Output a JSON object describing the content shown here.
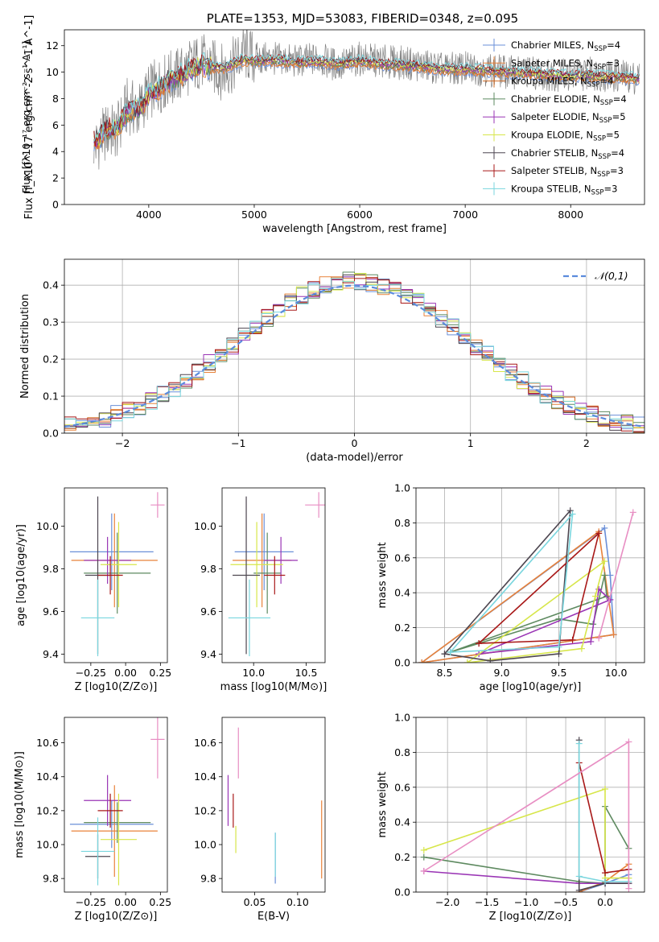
{
  "chart_data": [
    {
      "id": "spectrum",
      "type": "line",
      "title": "PLATE=1353, MJD=53083, FIBERID=0348, z=0.095",
      "xlabel": "wavelength [Angstrom, rest frame]",
      "ylabel": "Flux [f_λ10^-17 erg cm^-2 s^-1 A^-1]",
      "xlim": [
        3200,
        8700
      ],
      "ylim": [
        0,
        13.2
      ],
      "xticks": [
        4000,
        5000,
        6000,
        7000,
        8000
      ],
      "yticks": [
        0,
        2,
        4,
        6,
        8,
        10,
        12
      ],
      "legend_position": "right",
      "data_series": {
        "name": "data",
        "x": [
          3500,
          3600,
          3700,
          3800,
          3900,
          4000,
          4100,
          4200,
          4300,
          4400,
          4500,
          4600,
          4700,
          4800,
          4900,
          5000,
          5200,
          5400,
          5600,
          5800,
          6000,
          6200,
          6400,
          6600,
          6800,
          7000,
          7200,
          7400,
          7600,
          7800,
          8000,
          8200,
          8400,
          8650
        ],
        "y": [
          4.5,
          5.5,
          5.5,
          7.5,
          7.0,
          8.5,
          9.0,
          9.5,
          9.8,
          10.5,
          10.8,
          10.4,
          10.0,
          10.5,
          11.5,
          11.0,
          11.0,
          10.8,
          11.0,
          10.5,
          11.0,
          10.8,
          10.7,
          10.5,
          10.2,
          10.3,
          10.2,
          10.0,
          10.0,
          9.8,
          9.8,
          9.9,
          9.7,
          9.6
        ]
      },
      "series": [
        {
          "name": "Chabrier MILES, N_SSP=4",
          "color": "#6a8fd8"
        },
        {
          "name": "Salpeter MILES, N_SSP=3",
          "color": "#e8823a"
        },
        {
          "name": "Kroupa MILES, N_SSP=4",
          "color": "#d26b24"
        },
        {
          "name": "Chabrier ELODIE, N_SSP=4",
          "color": "#5e8a60"
        },
        {
          "name": "Salpeter ELODIE, N_SSP=5",
          "color": "#9a35b5"
        },
        {
          "name": "Kroupa ELODIE, N_SSP=5",
          "color": "#d7e64a"
        },
        {
          "name": "Chabrier STELIB, N_SSP=4",
          "color": "#4d4650"
        },
        {
          "name": "Salpeter STELIB, N_SSP=3",
          "color": "#a81818"
        },
        {
          "name": "Kroupa STELIB, N_SSP=3",
          "color": "#7ad6de"
        }
      ],
      "model_x": [
        3500,
        3600,
        3700,
        3800,
        3900,
        4000,
        4100,
        4200,
        4300,
        4400,
        4500,
        4600,
        4700,
        4800,
        4900,
        5000,
        5200,
        5400,
        5600,
        5800,
        6000,
        6200,
        6400,
        6600,
        6800,
        7000,
        7200,
        7400,
        7600,
        7800,
        8000,
        8200,
        8400,
        8650
      ],
      "model_y": [
        4.8,
        5.6,
        5.8,
        7.0,
        7.2,
        8.2,
        8.8,
        9.4,
        9.7,
        10.2,
        10.5,
        10.4,
        10.3,
        10.6,
        10.9,
        10.8,
        10.9,
        10.7,
        10.8,
        10.6,
        10.8,
        10.6,
        10.5,
        10.4,
        10.2,
        10.2,
        10.1,
        10.0,
        9.9,
        9.8,
        9.7,
        9.7,
        9.6,
        9.5
      ]
    },
    {
      "id": "residuals",
      "type": "line",
      "xlabel": "(data-model)/error",
      "ylabel": "Normed distribution",
      "xlim": [
        -2.5,
        2.5
      ],
      "ylim": [
        0,
        0.47
      ],
      "xticks": [
        -2,
        -1,
        0,
        1,
        2
      ],
      "yticks": [
        0.0,
        0.1,
        0.2,
        0.3,
        0.4
      ],
      "grid": true,
      "legend_position": "top-right",
      "reference": {
        "name": "𝒩(0,1)",
        "color": "#5b8bdc"
      },
      "bin_width": 0.1
    },
    {
      "id": "age-vs-Z",
      "type": "scatter",
      "xlabel": "Z [log10(Z/Z⊙)]",
      "ylabel": "age [log10(age/yr)]",
      "xlim": [
        -0.44,
        0.3
      ],
      "ylim": [
        9.36,
        10.18
      ],
      "xticks": [
        -0.25,
        0.0,
        0.25
      ],
      "yticks": [
        9.4,
        9.6,
        9.8,
        10.0
      ],
      "points": [
        {
          "color": "#6a8fd8",
          "x": -0.1,
          "y": 9.88,
          "xerr": 0.3,
          "yerr": 0.18
        },
        {
          "color": "#e8823a",
          "x": -0.08,
          "y": 9.84,
          "xerr": 0.31,
          "yerr": 0.22
        },
        {
          "color": "#5e8a60",
          "x": -0.06,
          "y": 9.78,
          "xerr": 0.24,
          "yerr": 0.19
        },
        {
          "color": "#9a35b5",
          "x": -0.13,
          "y": 9.84,
          "xerr": 0.17,
          "yerr": 0.11
        },
        {
          "color": "#d7e64a",
          "x": -0.05,
          "y": 9.82,
          "xerr": 0.13,
          "yerr": 0.2
        },
        {
          "color": "#4d4650",
          "x": -0.2,
          "y": 9.77,
          "xerr": 0.09,
          "yerr": 0.37
        },
        {
          "color": "#a81818",
          "x": -0.11,
          "y": 9.77,
          "xerr": 0.09,
          "yerr": 0.09
        },
        {
          "color": "#7ad6de",
          "x": -0.2,
          "y": 9.57,
          "xerr": 0.12,
          "yerr": 0.18
        },
        {
          "color": "#e88ec3",
          "x": 0.23,
          "y": 10.1,
          "xerr": 0.05,
          "yerr": 0.06
        }
      ]
    },
    {
      "id": "age-vs-mass",
      "type": "scatter",
      "xlabel": "mass [log10(M/M⊙)]",
      "xlim": [
        9.7,
        10.68
      ],
      "ylim": [
        9.36,
        10.18
      ],
      "xticks": [
        10.0,
        10.5
      ],
      "yticks": [
        9.4,
        9.6,
        9.8,
        10.0
      ],
      "points": [
        {
          "color": "#6a8fd8",
          "x": 10.1,
          "y": 9.88,
          "xerr": 0.28,
          "yerr": 0.18
        },
        {
          "color": "#e8823a",
          "x": 10.08,
          "y": 9.84,
          "xerr": 0.28,
          "yerr": 0.22
        },
        {
          "color": "#5e8a60",
          "x": 10.13,
          "y": 9.78,
          "xerr": 0.13,
          "yerr": 0.19
        },
        {
          "color": "#9a35b5",
          "x": 10.26,
          "y": 9.84,
          "xerr": 0.16,
          "yerr": 0.11
        },
        {
          "color": "#d7e64a",
          "x": 10.03,
          "y": 9.82,
          "xerr": 0.25,
          "yerr": 0.2
        },
        {
          "color": "#4d4650",
          "x": 9.93,
          "y": 9.77,
          "xerr": 0.13,
          "yerr": 0.37
        },
        {
          "color": "#a81818",
          "x": 10.2,
          "y": 9.77,
          "xerr": 0.1,
          "yerr": 0.09
        },
        {
          "color": "#7ad6de",
          "x": 9.96,
          "y": 9.57,
          "xerr": 0.2,
          "yerr": 0.18
        },
        {
          "color": "#e88ec3",
          "x": 10.62,
          "y": 10.1,
          "xerr": 0.13,
          "yerr": 0.06
        }
      ]
    },
    {
      "id": "weight-vs-age",
      "type": "line",
      "xlabel": "age [log10(age/yr)]",
      "ylabel": "mass weight",
      "xlim": [
        8.25,
        10.25
      ],
      "ylim": [
        0,
        1.0
      ],
      "xticks": [
        8.5,
        9.0,
        9.5,
        10.0
      ],
      "yticks": [
        0.0,
        0.2,
        0.4,
        0.6,
        0.8,
        1.0
      ],
      "series": [
        {
          "color": "#6a8fd8",
          "x": [
            8.3,
            9.9,
            9.95,
            9.98,
            8.3
          ],
          "y": [
            0.0,
            0.77,
            0.5,
            0.16,
            0.0
          ]
        },
        {
          "color": "#e8823a",
          "x": [
            8.3,
            9.85,
            9.98,
            8.3
          ],
          "y": [
            0.0,
            0.75,
            0.16,
            0.0
          ]
        },
        {
          "color": "#5e8a60",
          "x": [
            8.55,
            9.5,
            9.8,
            9.9,
            9.92,
            8.55
          ],
          "y": [
            0.06,
            0.25,
            0.22,
            0.5,
            0.38,
            0.06
          ]
        },
        {
          "color": "#9a35b5",
          "x": [
            8.8,
            9.78,
            9.85,
            9.95,
            8.8
          ],
          "y": [
            0.05,
            0.12,
            0.42,
            0.36,
            0.05
          ]
        },
        {
          "color": "#d7e64a",
          "x": [
            8.7,
            9.7,
            9.82,
            9.9,
            8.7
          ],
          "y": [
            0.0,
            0.08,
            0.38,
            0.58,
            0.0
          ]
        },
        {
          "color": "#4d4650",
          "x": [
            8.5,
            8.9,
            9.5,
            9.6,
            8.5
          ],
          "y": [
            0.05,
            0.01,
            0.05,
            0.87,
            0.05
          ]
        },
        {
          "color": "#a81818",
          "x": [
            8.8,
            9.62,
            9.85,
            8.8
          ],
          "y": [
            0.11,
            0.13,
            0.74,
            0.11
          ]
        },
        {
          "color": "#7ad6de",
          "x": [
            8.55,
            9.5,
            9.62,
            8.55
          ],
          "y": [
            0.06,
            0.09,
            0.85,
            0.06
          ]
        },
        {
          "color": "#e88ec3",
          "x": [
            9.85,
            10.15
          ],
          "y": [
            0.14,
            0.86
          ]
        }
      ]
    },
    {
      "id": "mass-vs-Z",
      "type": "scatter",
      "xlabel": "Z [log10(Z/Z⊙)]",
      "ylabel": "mass [log10(M/M⊙)]",
      "xlim": [
        -0.44,
        0.3
      ],
      "ylim": [
        9.72,
        10.75
      ],
      "xticks": [
        -0.25,
        0.0,
        0.25
      ],
      "yticks": [
        9.8,
        10.0,
        10.2,
        10.4,
        10.6
      ],
      "points": [
        {
          "color": "#6a8fd8",
          "x": -0.1,
          "y": 10.12,
          "xerr": 0.3,
          "yerr": 0.14
        },
        {
          "color": "#e8823a",
          "x": -0.08,
          "y": 10.08,
          "xerr": 0.31,
          "yerr": 0.27
        },
        {
          "color": "#5e8a60",
          "x": -0.06,
          "y": 10.13,
          "xerr": 0.24,
          "yerr": 0.12
        },
        {
          "color": "#9a35b5",
          "x": -0.13,
          "y": 10.26,
          "xerr": 0.17,
          "yerr": 0.15
        },
        {
          "color": "#d7e64a",
          "x": -0.05,
          "y": 10.03,
          "xerr": 0.13,
          "yerr": 0.27
        },
        {
          "color": "#4d4650",
          "x": -0.2,
          "y": 9.93,
          "xerr": 0.09,
          "yerr": 0.13
        },
        {
          "color": "#a81818",
          "x": -0.11,
          "y": 10.2,
          "xerr": 0.09,
          "yerr": 0.1
        },
        {
          "color": "#7ad6de",
          "x": -0.2,
          "y": 9.96,
          "xerr": 0.12,
          "yerr": 0.2
        },
        {
          "color": "#e88ec3",
          "x": 0.23,
          "y": 10.62,
          "xerr": 0.05,
          "yerr": 0.23
        }
      ]
    },
    {
      "id": "mass-vs-ebv",
      "type": "scatter",
      "xlabel": "E(B-V)",
      "xlim": [
        0.012,
        0.132
      ],
      "ylim": [
        9.72,
        10.75
      ],
      "xticks": [
        0.05,
        0.1
      ],
      "yticks": [
        9.8,
        10.0,
        10.2,
        10.4,
        10.6
      ],
      "points": [
        {
          "color": "#9a35b5",
          "x": 0.019,
          "y": 10.26,
          "yerr": 0.15
        },
        {
          "color": "#a81818",
          "x": 0.025,
          "y": 10.2,
          "yerr": 0.1
        },
        {
          "color": "#d7e64a",
          "x": 0.028,
          "y": 10.03,
          "yerr": 0.08
        },
        {
          "color": "#e88ec3",
          "x": 0.031,
          "y": 10.54,
          "yerr": 0.15
        },
        {
          "color": "#6a8fd8",
          "x": 0.074,
          "y": 9.92,
          "yerr": 0.15
        },
        {
          "color": "#7ad6de",
          "x": 0.074,
          "y": 9.94,
          "yerr": 0.13
        },
        {
          "color": "#e8823a",
          "x": 0.128,
          "y": 10.03,
          "yerr": 0.23
        }
      ]
    },
    {
      "id": "weight-vs-Z",
      "type": "line",
      "xlabel": "Z [log10(Z/Z⊙)]",
      "ylabel": "mass weight",
      "xlim": [
        -2.4,
        0.5
      ],
      "ylim": [
        0,
        1.0
      ],
      "xticks": [
        -2.0,
        -1.5,
        -1.0,
        -0.5,
        0.0
      ],
      "yticks": [
        0.0,
        0.2,
        0.4,
        0.6,
        0.8,
        1.0
      ],
      "series": [
        {
          "color": "#6a8fd8",
          "x": [
            -0.33,
            0.0,
            0.3
          ],
          "y": [
            0.0,
            0.05,
            0.1
          ]
        },
        {
          "color": "#e8823a",
          "x": [
            -0.33,
            0.0,
            0.3
          ],
          "y": [
            0.0,
            0.06,
            0.16
          ]
        },
        {
          "color": "#5e8a60",
          "x": [
            -2.3,
            -0.33,
            0.0,
            0.0,
            0.3
          ],
          "y": [
            0.2,
            0.06,
            0.05,
            0.49,
            0.25
          ]
        },
        {
          "color": "#9a35b5",
          "x": [
            -2.3,
            -0.33,
            0.0,
            0.3
          ],
          "y": [
            0.12,
            0.05,
            0.05,
            0.05
          ]
        },
        {
          "color": "#d7e64a",
          "x": [
            -2.3,
            0.0,
            0.0,
            0.3
          ],
          "y": [
            0.24,
            0.59,
            0.08,
            0.08
          ]
        },
        {
          "color": "#4d4650",
          "x": [
            -0.33,
            -0.33,
            0.0,
            0.3
          ],
          "y": [
            0.87,
            0.01,
            0.05,
            0.05
          ]
        },
        {
          "color": "#a81818",
          "x": [
            -0.33,
            0.0,
            0.3
          ],
          "y": [
            0.74,
            0.11,
            0.13
          ]
        },
        {
          "color": "#7ad6de",
          "x": [
            -0.33,
            -0.33,
            0.0,
            0.3
          ],
          "y": [
            0.85,
            0.09,
            0.06,
            0.06
          ]
        },
        {
          "color": "#e88ec3",
          "x": [
            -2.3,
            0.3,
            0.3
          ],
          "y": [
            0.12,
            0.86,
            0.02
          ]
        }
      ]
    }
  ]
}
